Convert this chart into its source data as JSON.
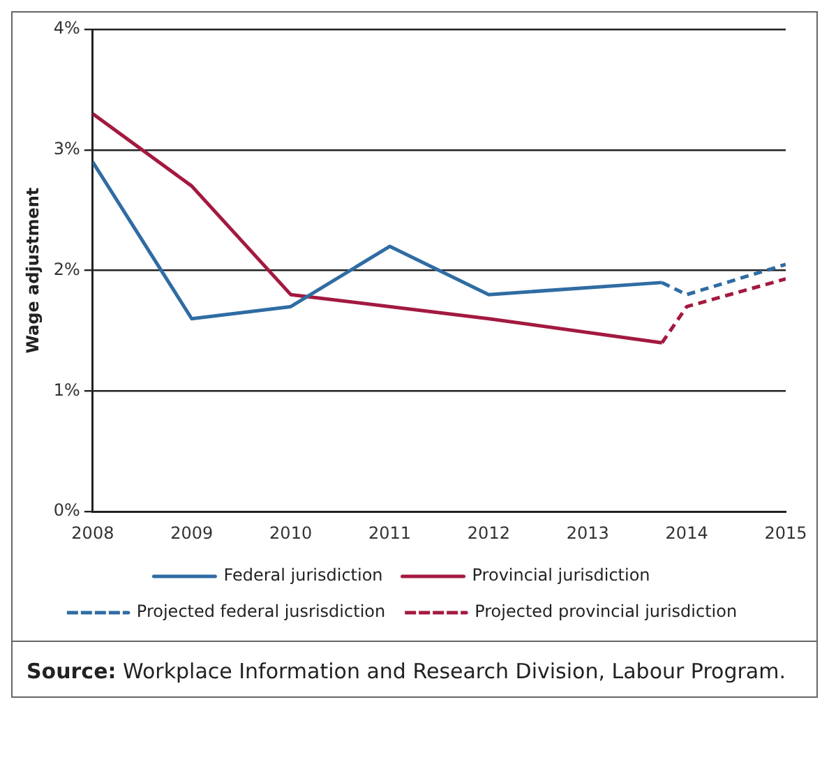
{
  "chart_data": {
    "type": "line",
    "ylabel": "Wage adjustment",
    "xlim": [
      2008,
      2015
    ],
    "xticks": [
      2008,
      2009,
      2010,
      2011,
      2012,
      2013,
      2014,
      2015
    ],
    "ylim": [
      0,
      4
    ],
    "yticks": [
      {
        "value": 0,
        "label": "0%"
      },
      {
        "value": 1,
        "label": "1%"
      },
      {
        "value": 2,
        "label": "2%"
      },
      {
        "value": 3,
        "label": "3%"
      },
      {
        "value": 4,
        "label": "4%"
      }
    ],
    "grid": "y",
    "legend": "bottom",
    "marker": "none",
    "series": [
      {
        "name": "Federal jurisdiction",
        "color": "#2f6ca3",
        "line_style": "solid",
        "x": [
          2008,
          2009,
          2010,
          2011,
          2012,
          2013.75
        ],
        "values": [
          2.9,
          1.6,
          1.7,
          2.2,
          1.8,
          1.9
        ]
      },
      {
        "name": "Provincial jurisdiction",
        "color": "#a3193f",
        "line_style": "solid",
        "x": [
          2008,
          2009,
          2010,
          2012,
          2013.75
        ],
        "values": [
          3.3,
          2.7,
          1.8,
          1.6,
          1.4
        ]
      },
      {
        "name": "Projected federal jusrisdiction",
        "color": "#2f6ca3",
        "line_style": "dashed",
        "x": [
          2013.75,
          2014,
          2015
        ],
        "values": [
          1.9,
          1.8,
          2.05
        ]
      },
      {
        "name": "Projected provincial jurisdiction",
        "color": "#a3193f",
        "line_style": "dashed",
        "x": [
          2013.75,
          2014,
          2015
        ],
        "values": [
          1.4,
          1.7,
          1.93
        ]
      }
    ],
    "annotations": [
      "Source: Workplace Information and Research Division, Labour Program."
    ]
  }
}
